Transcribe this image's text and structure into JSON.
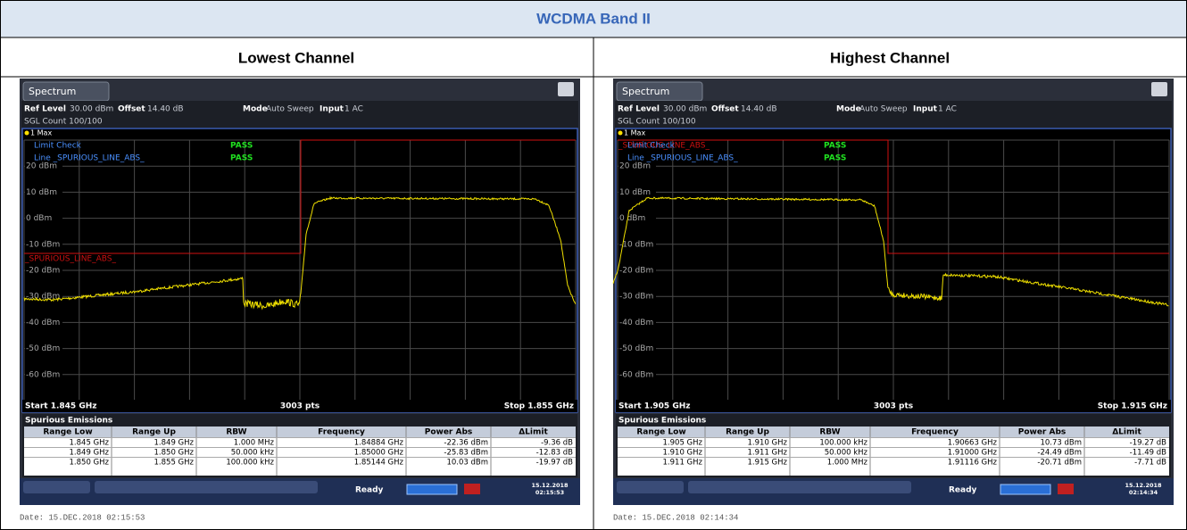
{
  "header": {
    "title": "WCDMA Band II"
  },
  "panels": [
    {
      "heading": "Lowest Channel",
      "tab": "Spectrum",
      "ref_level_label": "Ref Level",
      "ref_level": "30.00 dBm",
      "offset_label": "Offset",
      "offset": "14.40 dB",
      "mode_label": "Mode",
      "mode": "Auto Sweep",
      "input_label": "Input",
      "input": "1 AC",
      "sgl_count": "SGL Count 100/100",
      "trace": "1 Max",
      "limit_check": "Limit Check",
      "limit_check_result": "PASS",
      "line": "Line _SPURIOUS_LINE_ABS_",
      "line_result": "PASS",
      "limit_line_label": "_SPURIOUS_LINE_ABS_",
      "y_labels": [
        "20 dBm",
        "10 dBm",
        "0 dBm",
        "-10 dBm",
        "-20 dBm",
        "-30 dBm",
        "-40 dBm",
        "-50 dBm",
        "-60 dBm"
      ],
      "start": "Start 1.845 GHz",
      "pts": "3003 pts",
      "stop": "Stop 1.855 GHz",
      "table_title": "Spurious Emissions",
      "columns": [
        "Range Low",
        "Range Up",
        "RBW",
        "Frequency",
        "Power Abs",
        "ΔLimit"
      ],
      "rows": [
        [
          "1.845 GHz",
          "1.849 GHz",
          "1.000 MHz",
          "1.84884 GHz",
          "-22.36 dBm",
          "-9.36 dB"
        ],
        [
          "1.849 GHz",
          "1.850 GHz",
          "50.000 kHz",
          "1.85000 GHz",
          "-25.83 dBm",
          "-12.83 dB"
        ],
        [
          "1.850 GHz",
          "1.855 GHz",
          "100.000 kHz",
          "1.85144 GHz",
          "10.03 dBm",
          "-19.97 dB"
        ]
      ],
      "status": "Ready",
      "clock_date": "15.12.2018",
      "clock_time": "02:15:53",
      "date": "Date: 15.DEC.2018  02:15:53"
    },
    {
      "heading": "Highest Channel",
      "tab": "Spectrum",
      "ref_level_label": "Ref Level",
      "ref_level": "30.00 dBm",
      "offset_label": "Offset",
      "offset": "14.40 dB",
      "mode_label": "Mode",
      "mode": "Auto Sweep",
      "input_label": "Input",
      "input": "1 AC",
      "sgl_count": "SGL Count 100/100",
      "trace": "1 Max",
      "limit_check": "Limit Check",
      "limit_check_result": "PASS",
      "line": "Line _SPURIOUS_LINE_ABS_",
      "line_result": "PASS",
      "limit_line_label": "_SPURIOUS_LINE_ABS_",
      "y_labels": [
        "20 dBm",
        "10 dBm",
        "0 dBm",
        "-10 dBm",
        "-20 dBm",
        "-30 dBm",
        "-40 dBm",
        "-50 dBm",
        "-60 dBm"
      ],
      "start": "Start 1.905 GHz",
      "pts": "3003 pts",
      "stop": "Stop 1.915 GHz",
      "table_title": "Spurious Emissions",
      "columns": [
        "Range Low",
        "Range Up",
        "RBW",
        "Frequency",
        "Power Abs",
        "ΔLimit"
      ],
      "rows": [
        [
          "1.905 GHz",
          "1.910 GHz",
          "100.000 kHz",
          "1.90663 GHz",
          "10.73 dBm",
          "-19.27 dB"
        ],
        [
          "1.910 GHz",
          "1.911 GHz",
          "50.000 kHz",
          "1.91000 GHz",
          "-24.49 dBm",
          "-11.49 dB"
        ],
        [
          "1.911 GHz",
          "1.915 GHz",
          "1.000 MHz",
          "1.91116 GHz",
          "-20.71 dBm",
          "-7.71 dB"
        ]
      ],
      "status": "Ready",
      "clock_date": "15.12.2018",
      "clock_time": "02:14:34",
      "date": "Date: 15.DEC.2018  02:14:34"
    }
  ]
}
